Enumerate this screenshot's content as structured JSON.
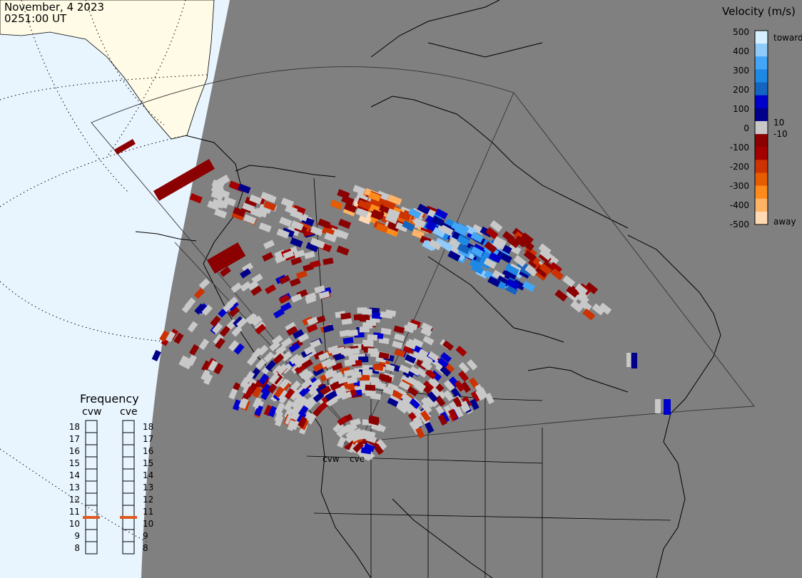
{
  "header": {
    "date": "November, 4 2023",
    "time": "0251:00 UT"
  },
  "colorbar": {
    "title": "Velocity (m/s)",
    "toward_label": "toward",
    "away_label": "away",
    "ticks_left": [
      "500",
      "400",
      "300",
      "200",
      "100",
      "0",
      "-100",
      "-200",
      "-300",
      "-400",
      "-500"
    ],
    "ticks_right": [
      "10",
      "-10"
    ],
    "colors": [
      "#ffd9b3",
      "#ffb366",
      "#ff8c1a",
      "#e65c00",
      "#cc3300",
      "#a30000",
      "#8b0000",
      "#c8c8c8",
      "#00008b",
      "#0000cd",
      "#1565c0",
      "#1e88e5",
      "#42a5f5",
      "#90caf9",
      "#d6f0ff"
    ]
  },
  "frequency": {
    "title": "Frequency",
    "radars": [
      "cvw",
      "cve"
    ],
    "scale": [
      "18",
      "17",
      "16",
      "15",
      "14",
      "13",
      "12",
      "11",
      "10",
      "9",
      "8"
    ],
    "current_mhz": [
      11,
      11
    ],
    "indicator_color": "#e05a20"
  },
  "map": {
    "radar_labels": [
      "cvw",
      "cve"
    ],
    "land_color": "#808080",
    "ocean_color": "#e8f5ff",
    "daylight_land_color": "#fffbe6"
  }
}
